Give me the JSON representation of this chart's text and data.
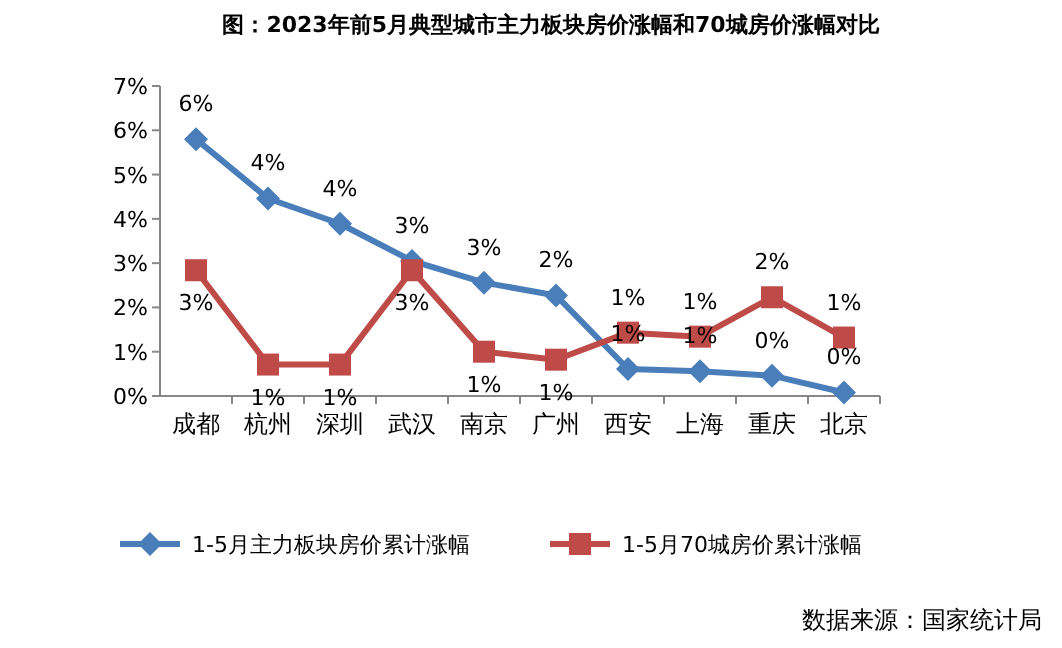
{
  "chart_data": {
    "type": "line",
    "title": "图：2023年前5月典型城市主力板块房价涨幅和70城房价涨幅对比",
    "categories": [
      "成都",
      "杭州",
      "深圳",
      "武汉",
      "南京",
      "广州",
      "西安",
      "上海",
      "重庆",
      "北京"
    ],
    "series": [
      {
        "name": "1-5月主力板块房价累计涨幅",
        "color": "#4a7ebb",
        "marker": "diamond",
        "values": [
          5.8,
          4.46,
          3.89,
          3.05,
          2.56,
          2.27,
          0.61,
          0.56,
          0.46,
          0.08
        ],
        "value_labels": [
          "6%",
          "4%",
          "4%",
          "3%",
          "3%",
          "2%",
          "1%",
          "1%",
          "0%",
          "0%"
        ]
      },
      {
        "name": "1-5月70城房价累计涨幅",
        "color": "#be4b48",
        "marker": "square",
        "values": [
          2.84,
          0.71,
          0.71,
          2.84,
          1.0,
          0.82,
          1.43,
          1.34,
          2.23,
          1.32
        ],
        "value_labels": [
          "3%",
          "1%",
          "1%",
          "3%",
          "1%",
          "1%",
          "1%",
          "1%",
          "2%",
          "1%"
        ]
      }
    ],
    "ylim": [
      0,
      7
    ],
    "yticks": [
      {
        "value": 0,
        "label": "0%"
      },
      {
        "value": 1,
        "label": "1%"
      },
      {
        "value": 2,
        "label": "2%"
      },
      {
        "value": 3,
        "label": "3%"
      },
      {
        "value": 4,
        "label": "4%"
      },
      {
        "value": 5,
        "label": "5%"
      },
      {
        "value": 6,
        "label": "6%"
      },
      {
        "value": 7,
        "label": "7%"
      }
    ],
    "grid": false,
    "legend": "bottom",
    "line_style": "solid",
    "annotations": [
      "数据来源：国家统计局"
    ]
  }
}
